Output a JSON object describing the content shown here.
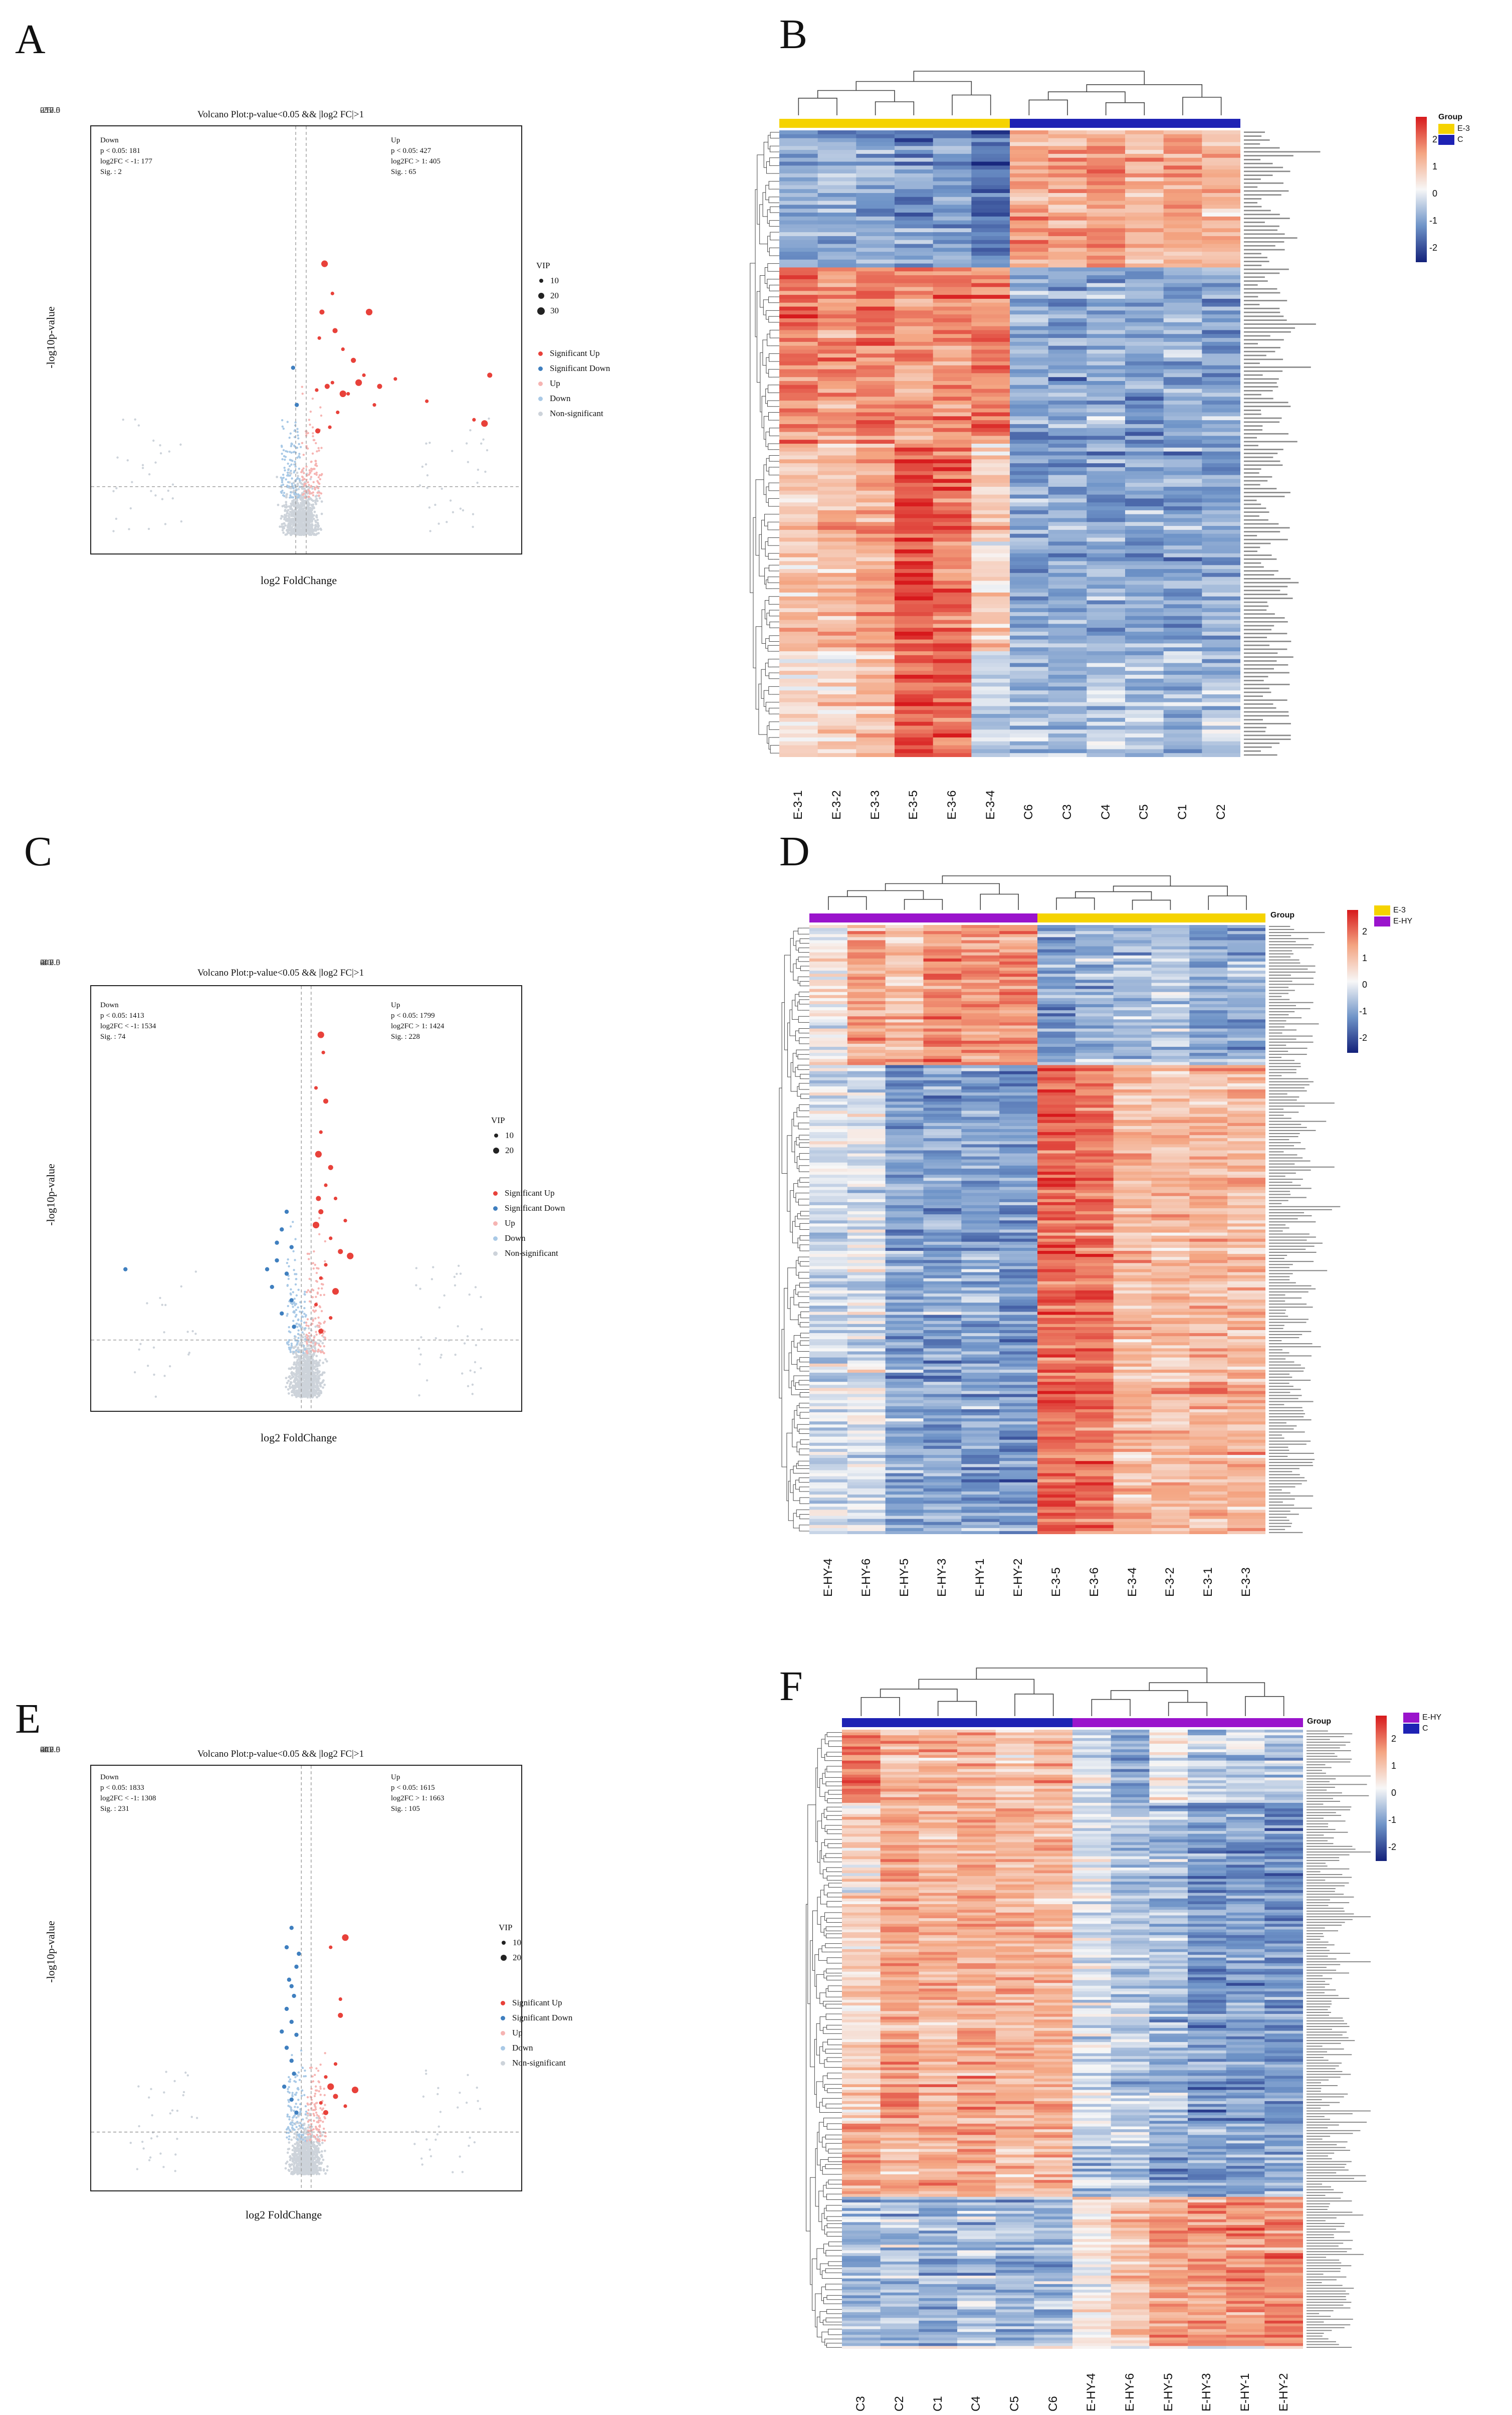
{
  "panels": [
    "A",
    "B",
    "C",
    "D",
    "E",
    "F"
  ],
  "chart_data": [
    {
      "type": "scatter",
      "id": "A",
      "title": "Volcano Plot:p-value<0.05 && |log2 FC|>1",
      "xlabel": "log2 FoldChange",
      "ylabel": "-log10p-value",
      "xlim": [
        -40,
        42
      ],
      "ylim": [
        -0.5,
        11
      ],
      "xticks": [
        -25,
        0,
        25
      ],
      "yticks": [
        0.0,
        2.5,
        5.0,
        7.5,
        10.0
      ],
      "ytick_labels": [
        "0.0",
        "2.5",
        "5.0",
        "7.5",
        "10.0"
      ],
      "down_text": [
        "Down",
        "p < 0.05: 181",
        "log2FC < -1: 177",
        "Sig. : 2"
      ],
      "up_text": [
        "Up",
        "p < 0.05: 427",
        "log2FC > 1: 405",
        "Sig. : 65"
      ],
      "vip_title": "VIP",
      "vip_sizes": [
        "10",
        "20",
        "30"
      ],
      "legend": [
        "Significant Up",
        "Significant Down",
        "Up",
        "Down",
        "Non-significant"
      ],
      "sig_up_points": [
        [
          4.5,
          7.3
        ],
        [
          6,
          6.5
        ],
        [
          8,
          5
        ],
        [
          10,
          4.7
        ],
        [
          12,
          4.3
        ],
        [
          13,
          6
        ],
        [
          15,
          4
        ],
        [
          18,
          4.2
        ],
        [
          24,
          3.6
        ],
        [
          36,
          4.3
        ],
        [
          35,
          3
        ],
        [
          3,
          3.9
        ],
        [
          5,
          4
        ],
        [
          7,
          3.3
        ],
        [
          9,
          3.8
        ],
        [
          11,
          4.1
        ],
        [
          14,
          3.5
        ],
        [
          3.5,
          5.3
        ],
        [
          4,
          6
        ],
        [
          6,
          4.1
        ],
        [
          8,
          3.8
        ],
        [
          3.2,
          2.8
        ],
        [
          5.5,
          2.9
        ],
        [
          33,
          3.1
        ],
        [
          6.5,
          5.5
        ]
      ],
      "sig_down_points": [
        [
          -1.5,
          4.5
        ],
        [
          -0.8,
          3.5
        ]
      ]
    },
    {
      "type": "scatter",
      "id": "C",
      "title": "Volcano Plot:p-value<0.05 && |log2 FC|>1",
      "xlabel": "log2 FoldChange",
      "ylabel": "-log10p-value",
      "xlim": [
        -44,
        44
      ],
      "ylim": [
        -0.3,
        9.3
      ],
      "xticks": [
        -40,
        -20,
        0,
        20,
        40
      ],
      "yticks": [
        0.0,
        2.5,
        5.0,
        7.5
      ],
      "ytick_labels": [
        "0.0",
        "2.5",
        "5.0",
        "7.5"
      ],
      "down_text": [
        "Down",
        "p < 0.05: 1413",
        "log2FC < -1: 1534",
        "Sig. : 74"
      ],
      "up_text": [
        "Up",
        "p < 0.05: 1799",
        "log2FC > 1: 1424",
        "Sig. : 228"
      ],
      "vip_title": "VIP",
      "vip_sizes": [
        "10",
        "20"
      ],
      "legend": [
        "Significant Up",
        "Significant Down",
        "Up",
        "Down",
        "Non-significant"
      ],
      "sig_up_points": [
        [
          3,
          8.2
        ],
        [
          3.5,
          7.8
        ],
        [
          2,
          7
        ],
        [
          4,
          6.7
        ],
        [
          3,
          6
        ],
        [
          2.5,
          5.5
        ],
        [
          5,
          5.2
        ],
        [
          4,
          4.8
        ],
        [
          6,
          4.5
        ],
        [
          3,
          4.2
        ],
        [
          2,
          3.9
        ],
        [
          5,
          3.6
        ],
        [
          7,
          3.3
        ],
        [
          4,
          3
        ],
        [
          3,
          2.7
        ],
        [
          6,
          2.4
        ],
        [
          2,
          2.1
        ],
        [
          5,
          1.8
        ],
        [
          3,
          1.5
        ],
        [
          8,
          4
        ],
        [
          9,
          3.2
        ],
        [
          2.5,
          4.5
        ]
      ],
      "sig_down_points": [
        [
          -37,
          2.9
        ],
        [
          -4,
          4.2
        ],
        [
          -5,
          3.8
        ],
        [
          -3,
          3.4
        ],
        [
          -6,
          3.1
        ],
        [
          -4,
          2.8
        ],
        [
          -7,
          2.5
        ],
        [
          -3,
          2.2
        ],
        [
          -5,
          1.9
        ],
        [
          -2.5,
          1.6
        ],
        [
          -6,
          3.5
        ],
        [
          -8,
          2.9
        ]
      ]
    },
    {
      "type": "scatter",
      "id": "E",
      "title": "Volcano Plot:p-value<0.05 && |log2 FC|>1",
      "xlabel": "log2 FoldChange",
      "ylabel": "-log10p-value",
      "xlim": [
        -44,
        44
      ],
      "ylim": [
        -0.5,
        12.6
      ],
      "xticks": [
        -40,
        -20,
        0,
        20,
        40
      ],
      "yticks": [
        0.0,
        2.5,
        5.0,
        7.5,
        10.0,
        12.5
      ],
      "ytick_labels": [
        "0.0",
        "2.5",
        "5.0",
        "7.5",
        "10.0",
        "12.5"
      ],
      "down_text": [
        "Down",
        "p < 0.05: 1833",
        "log2FC < -1: 1308",
        "Sig. : 231"
      ],
      "up_text": [
        "Up",
        "p < 0.05: 1615",
        "log2FC > 1: 1663",
        "Sig. : 105"
      ],
      "vip_title": "VIP",
      "vip_sizes": [
        "10",
        "20"
      ],
      "legend": [
        "Significant Up",
        "Significant Down",
        "Up",
        "Down",
        "Non-significant"
      ],
      "sig_up_points": [
        [
          8,
          7.3
        ],
        [
          5,
          7
        ],
        [
          7,
          5.4
        ],
        [
          7,
          4.9
        ],
        [
          4,
          3
        ],
        [
          5,
          2.7
        ],
        [
          6,
          2.4
        ],
        [
          3,
          2.2
        ],
        [
          8,
          2.1
        ],
        [
          4,
          1.9
        ],
        [
          10,
          2.6
        ],
        [
          6,
          3.4
        ]
      ],
      "sig_down_points": [
        [
          -3,
          7.6
        ],
        [
          -4,
          7
        ],
        [
          -2,
          6.4
        ],
        [
          -3.5,
          6
        ],
        [
          -2.5,
          5.5
        ],
        [
          -4,
          5.1
        ],
        [
          -3,
          4.7
        ],
        [
          -2,
          4.3
        ],
        [
          -4,
          3.9
        ],
        [
          -3,
          3.5
        ],
        [
          -2.5,
          3.1
        ],
        [
          -4.5,
          2.7
        ],
        [
          -3,
          2.3
        ],
        [
          -2,
          1.9
        ],
        [
          -5,
          4.4
        ],
        [
          -3,
          5.8
        ],
        [
          -1.5,
          6.8
        ]
      ]
    },
    {
      "type": "heatmap",
      "id": "B",
      "samples": [
        "E-3-1",
        "E-3-2",
        "E-3-3",
        "E-3-5",
        "E-3-6",
        "E-3-4",
        "C6",
        "C3",
        "C4",
        "C5",
        "C1",
        "C2"
      ],
      "groups": [
        "E-3",
        "E-3",
        "E-3",
        "E-3",
        "E-3",
        "E-3",
        "C",
        "C",
        "C",
        "C",
        "C",
        "C"
      ],
      "legend_title": "Group",
      "legend_items": [
        {
          "name": "E-3",
          "color": "#f5d300"
        },
        {
          "name": "C",
          "color": "#1e22b4"
        }
      ],
      "colorbar_ticks": [
        "2",
        "1",
        "0",
        "-1",
        "-2"
      ],
      "range": [
        -2.5,
        2.5
      ],
      "n_rows": 160,
      "seed": 11,
      "row_blocks": [
        {
          "frac": 0.22,
          "means": [
            -1,
            -1,
            -1,
            -1.2,
            -1,
            -1.5,
            1.2,
            1,
            1.3,
            0.9,
            1.1,
            1
          ]
        },
        {
          "frac": 0.28,
          "means": [
            1.6,
            1.3,
            1.5,
            1.3,
            1.3,
            1.5,
            -1,
            -1,
            -0.9,
            -1.1,
            -1,
            -1
          ]
        },
        {
          "frac": 0.33,
          "means": [
            0.8,
            0.9,
            1.2,
            2,
            1.7,
            0.6,
            -1,
            -1,
            -1,
            -1,
            -1,
            -1
          ]
        },
        {
          "frac": 0.17,
          "means": [
            0.3,
            0.5,
            0.8,
            1.8,
            1.8,
            -0.4,
            -0.6,
            -0.8,
            -0.5,
            -0.6,
            -0.8,
            -0.5
          ]
        }
      ]
    },
    {
      "type": "heatmap",
      "id": "D",
      "samples": [
        "E-HY-4",
        "E-HY-6",
        "E-HY-5",
        "E-HY-3",
        "E-HY-1",
        "E-HY-2",
        "E-3-5",
        "E-3-6",
        "E-3-4",
        "E-3-2",
        "E-3-1",
        "E-3-3"
      ],
      "groups": [
        "E-HY",
        "E-HY",
        "E-HY",
        "E-HY",
        "E-HY",
        "E-HY",
        "E-3",
        "E-3",
        "E-3",
        "E-3",
        "E-3",
        "E-3"
      ],
      "legend_title": "Group",
      "legend_items": [
        {
          "name": "E-3",
          "color": "#f5d300"
        },
        {
          "name": "E-HY",
          "color": "#9a14cc"
        }
      ],
      "colorbar_ticks": [
        "2",
        "1",
        "0",
        "-1",
        "-2"
      ],
      "range": [
        -2.5,
        2.5
      ],
      "n_rows": 200,
      "seed": 23,
      "row_blocks": [
        {
          "frac": 0.23,
          "means": [
            0.2,
            1.2,
            0.8,
            1.5,
            1.3,
            1.3,
            -1,
            -0.8,
            -0.7,
            -0.5,
            -0.9,
            -0.9
          ]
        },
        {
          "frac": 0.77,
          "means": [
            -0.3,
            -0.2,
            -1,
            -1,
            -1,
            -1.1,
            1.8,
            1.7,
            0.9,
            0.9,
            1,
            0.9
          ]
        }
      ]
    },
    {
      "type": "heatmap",
      "id": "F",
      "samples": [
        "C3",
        "C2",
        "C1",
        "C4",
        "C5",
        "C6",
        "E-HY-4",
        "E-HY-6",
        "E-HY-5",
        "E-HY-3",
        "E-HY-1",
        "E-HY-2"
      ],
      "groups": [
        "C",
        "C",
        "C",
        "C",
        "C",
        "C",
        "E-HY",
        "E-HY",
        "E-HY",
        "E-HY",
        "E-HY",
        "E-HY"
      ],
      "legend_title": "Group",
      "legend_items": [
        {
          "name": "E-HY",
          "color": "#9a14cc"
        },
        {
          "name": "C",
          "color": "#1e22b4"
        }
      ],
      "colorbar_ticks": [
        "2",
        "1",
        "0",
        "-1",
        "-2"
      ],
      "range": [
        -2.5,
        2.5
      ],
      "n_rows": 220,
      "seed": 37,
      "row_blocks": [
        {
          "frac": 0.12,
          "means": [
            1.6,
            0.9,
            1,
            0.8,
            0.6,
            0.9,
            -0.4,
            -0.9,
            0.2,
            -0.4,
            -0.4,
            -0.6
          ]
        },
        {
          "frac": 0.52,
          "means": [
            0.5,
            1.2,
            0.9,
            1.1,
            1,
            1,
            -0.2,
            -0.6,
            -0.7,
            -1.2,
            -1.1,
            -1.2
          ]
        },
        {
          "frac": 0.12,
          "means": [
            1.2,
            1,
            1,
            1.3,
            0.8,
            0.9,
            -0.6,
            -0.5,
            -0.9,
            -0.9,
            -0.9,
            -0.8
          ]
        },
        {
          "frac": 0.24,
          "means": [
            -0.7,
            -0.6,
            -0.9,
            -0.6,
            -0.8,
            -0.7,
            0.2,
            0.7,
            1.2,
            1.3,
            1.4,
            1.4
          ]
        }
      ]
    }
  ]
}
